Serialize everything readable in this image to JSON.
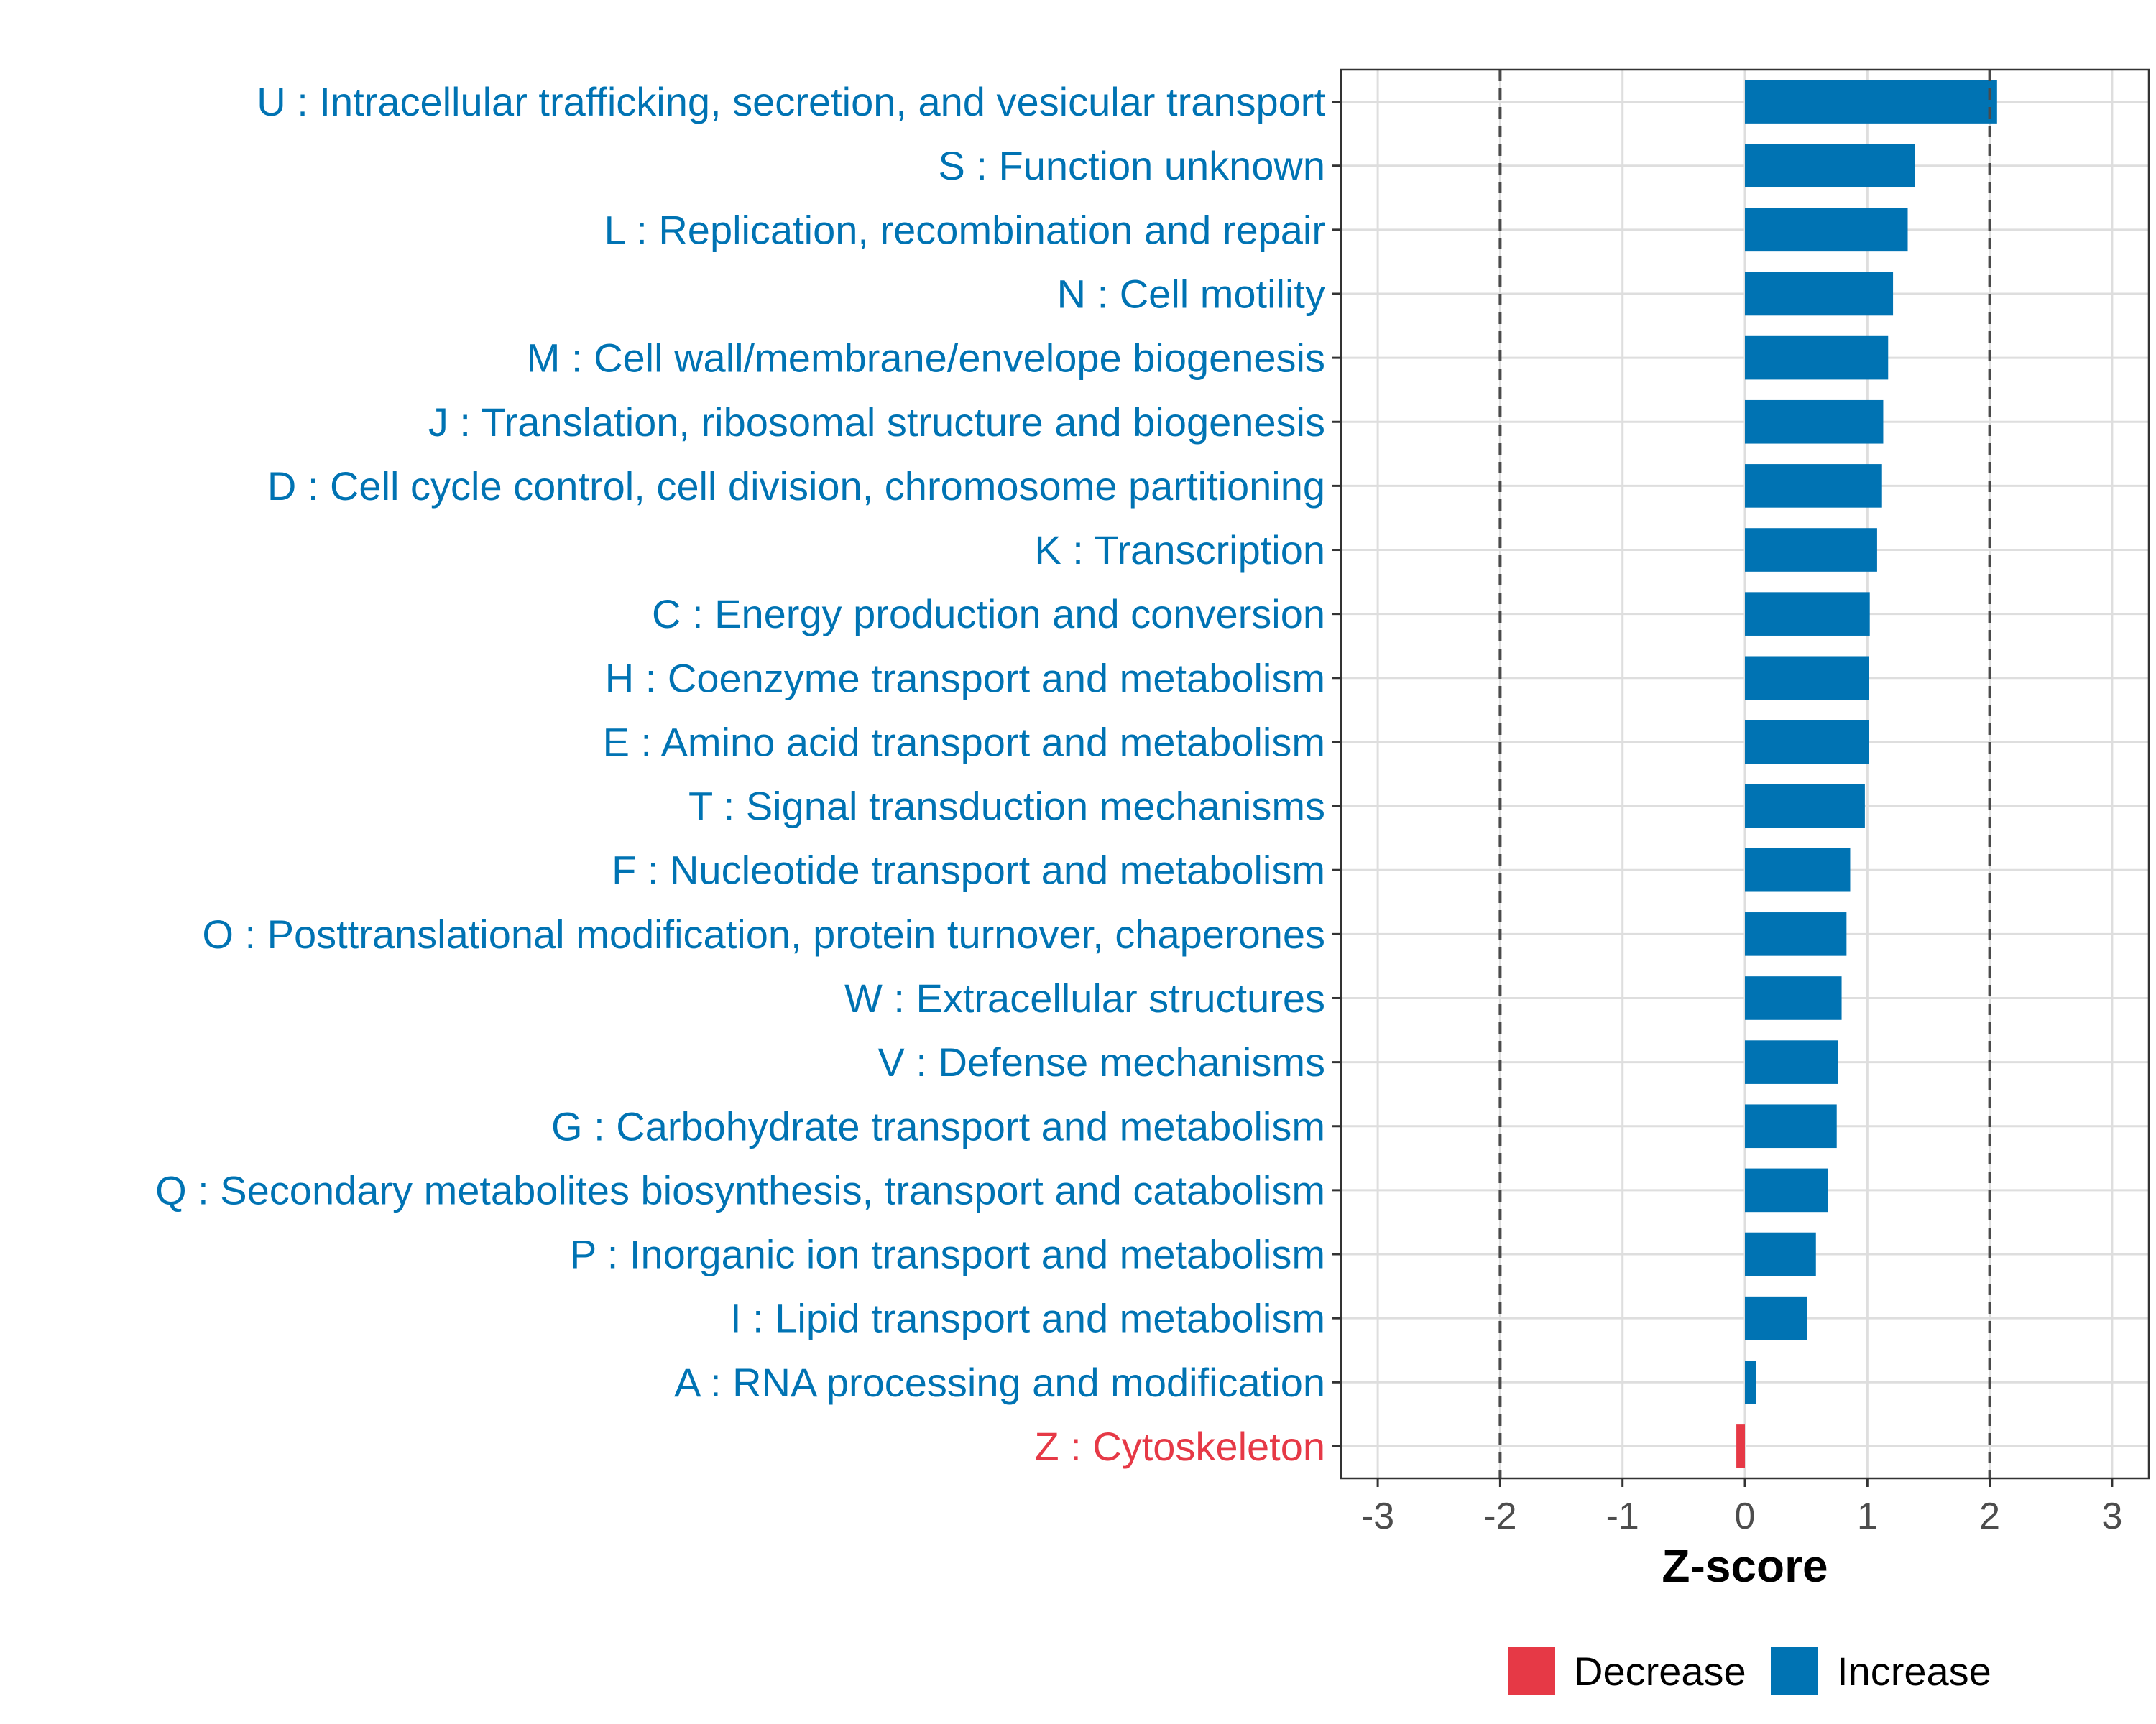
{
  "chart_data": {
    "type": "bar",
    "orientation": "horizontal",
    "xlabel": "Z-score",
    "ylabel": "",
    "xlim": [
      -3.3,
      3.3
    ],
    "xticks": [
      -3,
      -2,
      -1,
      0,
      1,
      2,
      3
    ],
    "xtick_labels": [
      "-3",
      "-2",
      "-1",
      "0",
      "1",
      "2",
      "3"
    ],
    "threshold_lines": [
      -2,
      2
    ],
    "grid": true,
    "legend_position": "bottom",
    "colors": {
      "Decrease": "#e63946",
      "Increase": "#0073b3"
    },
    "legend": [
      {
        "label": "Decrease",
        "color": "#e63946"
      },
      {
        "label": "Increase",
        "color": "#0073b3"
      }
    ],
    "categories": [
      "U : Intracellular trafficking, secretion, and vesicular transport",
      "S : Function unknown",
      "L : Replication, recombination and repair",
      "N : Cell motility",
      "M : Cell wall/membrane/envelope biogenesis",
      "J : Translation, ribosomal structure and biogenesis",
      "D : Cell cycle control, cell division, chromosome partitioning",
      "K : Transcription",
      "C : Energy production and conversion",
      "H : Coenzyme transport and metabolism",
      "E : Amino acid transport and metabolism",
      "T : Signal transduction mechanisms",
      "F : Nucleotide transport and metabolism",
      "O : Posttranslational modification, protein turnover, chaperones",
      "W : Extracellular structures",
      "V : Defense mechanisms",
      "G : Carbohydrate transport and metabolism",
      "Q : Secondary metabolites biosynthesis, transport and catabolism",
      "P : Inorganic ion transport and metabolism",
      "I : Lipid transport and metabolism",
      "A : RNA processing and modification",
      "Z : Cytoskeleton"
    ],
    "values": [
      2.06,
      1.39,
      1.33,
      1.21,
      1.17,
      1.13,
      1.12,
      1.08,
      1.02,
      1.01,
      1.01,
      0.98,
      0.86,
      0.83,
      0.79,
      0.76,
      0.75,
      0.68,
      0.58,
      0.51,
      0.09,
      -0.07
    ],
    "direction": [
      "Increase",
      "Increase",
      "Increase",
      "Increase",
      "Increase",
      "Increase",
      "Increase",
      "Increase",
      "Increase",
      "Increase",
      "Increase",
      "Increase",
      "Increase",
      "Increase",
      "Increase",
      "Increase",
      "Increase",
      "Increase",
      "Increase",
      "Increase",
      "Increase",
      "Decrease"
    ]
  }
}
